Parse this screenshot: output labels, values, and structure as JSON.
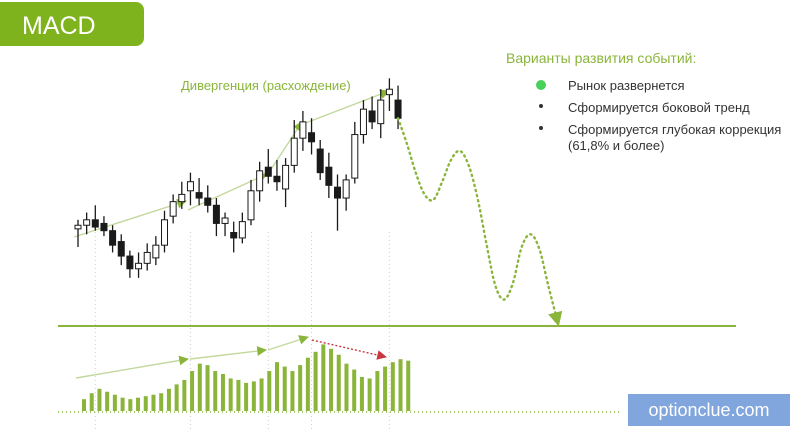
{
  "badge": {
    "title": "MACD"
  },
  "scenarios": {
    "title": "Варианты развития событий:",
    "items": [
      {
        "label": "Рынок развернется",
        "accent": true
      },
      {
        "label": "Сформируется боковой тренд",
        "accent": false
      },
      {
        "label": "Сформируется глубокая коррекция (61,8% и более)",
        "accent": false
      }
    ]
  },
  "brand": {
    "text": "optionclue.com"
  },
  "colors": {
    "green": "#8ab53a",
    "bright_green": "#48d15a",
    "arrow_light": "#c2d89c",
    "red": "#c8373f",
    "brand_bg": "#81a6dd",
    "candle_line": "#1a1a1a"
  },
  "chart_data": [
    {
      "type": "candlestick",
      "annotation": "Дивергенция (расхождение)",
      "candles": [
        [
          53,
          58,
          43,
          55
        ],
        [
          55,
          62,
          50,
          58
        ],
        [
          58,
          66,
          52,
          54
        ],
        [
          56,
          60,
          49,
          52
        ],
        [
          52,
          55,
          40,
          44
        ],
        [
          46,
          50,
          33,
          38
        ],
        [
          38,
          41,
          26,
          31
        ],
        [
          31,
          40,
          26,
          34
        ],
        [
          34,
          45,
          30,
          40
        ],
        [
          37,
          49,
          33,
          44
        ],
        [
          44,
          63,
          40,
          58
        ],
        [
          60,
          72,
          56,
          68
        ],
        [
          68,
          79,
          64,
          72
        ],
        [
          74,
          84,
          66,
          79
        ],
        [
          73,
          81,
          66,
          70
        ],
        [
          70,
          77,
          62,
          66
        ],
        [
          66,
          70,
          49,
          56
        ],
        [
          56,
          62,
          49,
          59
        ],
        [
          51,
          57,
          40,
          48
        ],
        [
          48,
          62,
          45,
          57
        ],
        [
          58,
          80,
          55,
          74
        ],
        [
          74,
          90,
          68,
          85
        ],
        [
          87,
          97,
          78,
          82
        ],
        [
          82,
          91,
          74,
          79
        ],
        [
          75,
          92,
          65,
          88
        ],
        [
          88,
          113,
          84,
          103
        ],
        [
          103,
          118,
          96,
          112
        ],
        [
          106,
          114,
          94,
          101
        ],
        [
          97,
          102,
          80,
          84
        ],
        [
          87,
          95,
          70,
          77
        ],
        [
          76,
          83,
          52,
          70
        ],
        [
          70,
          83,
          63,
          80
        ],
        [
          81,
          112,
          78,
          105
        ],
        [
          105,
          124,
          100,
          119
        ],
        [
          118,
          126,
          108,
          112
        ],
        [
          111,
          130,
          103,
          124
        ],
        [
          127,
          136,
          118,
          130
        ],
        [
          124,
          132,
          108,
          114
        ]
      ],
      "ylim": [
        0,
        145
      ]
    },
    {
      "type": "projection",
      "x": [
        0,
        1,
        2,
        3,
        4,
        5,
        6,
        7,
        8,
        9,
        10,
        11,
        12,
        13,
        14,
        15,
        16,
        17,
        18
      ],
      "values": [
        114,
        100,
        84,
        72,
        69,
        79,
        91,
        96,
        88,
        70,
        45,
        22,
        14,
        23,
        43,
        50,
        42,
        22,
        3
      ],
      "ylim": [
        0,
        145
      ]
    },
    {
      "type": "bar",
      "values": [
        8,
        12,
        15,
        13,
        11,
        9,
        8,
        9,
        10,
        11,
        12,
        15,
        18,
        21,
        27,
        32,
        31,
        27,
        25,
        22,
        21,
        19,
        20,
        22,
        27,
        33,
        30,
        27,
        31,
        36,
        40,
        45,
        42,
        38,
        32,
        28,
        23,
        22,
        27,
        30,
        33,
        35,
        34
      ],
      "ylim": [
        0,
        50
      ]
    }
  ]
}
